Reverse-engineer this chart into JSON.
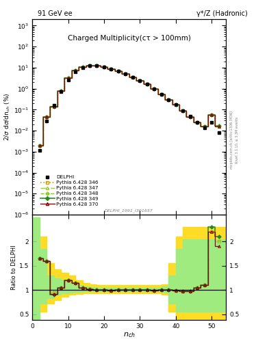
{
  "title_left": "91 GeV ee",
  "title_right": "γ*/Z (Hadronic)",
  "plot_title": "Charged Multiplicity",
  "plot_title_sub": "(cτ > 100mm)",
  "ylabel_main": "2/σ dσ/dn_{ch} (%)",
  "ylabel_ratio": "Ratio to DELPHI",
  "xlabel": "n_{ch}",
  "watermark": "DELPHI_1991_I301657",
  "rivet_label": "Rivet 3.1.10, ≥ 3.3M events",
  "arxiv_label": "[arXiv:1306.3436]",
  "mcplots_label": "mcplots.cern.ch",
  "nch_pts": [
    2,
    4,
    6,
    8,
    10,
    12,
    14,
    16,
    18,
    20,
    22,
    24,
    26,
    28,
    30,
    32,
    34,
    36,
    38,
    40,
    42,
    44,
    46,
    48,
    50,
    52
  ],
  "delphi_vals": [
    0.00115,
    0.028,
    0.155,
    0.72,
    2.6,
    6.5,
    10.2,
    12.4,
    12.1,
    10.6,
    8.6,
    6.7,
    5.1,
    3.6,
    2.4,
    1.6,
    0.95,
    0.55,
    0.3,
    0.17,
    0.09,
    0.048,
    0.024,
    0.014,
    0.025,
    0.008
  ],
  "ratio_346": [
    1.65,
    1.6,
    0.95,
    1.05,
    1.2,
    1.15,
    1.05,
    1.02,
    1.0,
    1.0,
    0.99,
    1.0,
    1.0,
    1.0,
    1.0,
    1.0,
    0.99,
    1.0,
    1.0,
    0.99,
    0.98,
    0.97,
    1.05,
    1.1,
    2.2,
    2.0
  ],
  "ratio_347": [
    1.65,
    1.6,
    0.92,
    1.05,
    1.2,
    1.15,
    1.05,
    1.02,
    1.0,
    1.0,
    0.99,
    1.0,
    1.0,
    1.0,
    1.0,
    1.0,
    0.99,
    1.0,
    1.0,
    0.99,
    0.98,
    0.97,
    1.05,
    1.1,
    2.2,
    2.0
  ],
  "ratio_348": [
    1.65,
    1.6,
    0.9,
    1.05,
    1.2,
    1.15,
    1.05,
    1.02,
    1.0,
    1.0,
    0.99,
    1.0,
    1.0,
    1.0,
    1.0,
    1.0,
    0.99,
    1.0,
    1.0,
    0.99,
    0.98,
    0.97,
    1.05,
    1.1,
    2.3,
    2.1
  ],
  "ratio_349": [
    1.65,
    1.6,
    0.9,
    1.05,
    1.2,
    1.15,
    1.05,
    1.02,
    1.0,
    1.0,
    0.99,
    1.0,
    1.0,
    1.0,
    1.0,
    1.0,
    0.99,
    1.0,
    1.0,
    0.99,
    0.98,
    0.97,
    1.05,
    1.1,
    2.3,
    2.1
  ],
  "ratio_370": [
    1.65,
    1.6,
    0.92,
    1.05,
    1.2,
    1.15,
    1.05,
    1.02,
    1.0,
    1.0,
    0.99,
    1.0,
    1.0,
    1.0,
    1.0,
    1.0,
    0.99,
    1.0,
    1.0,
    0.99,
    0.98,
    0.97,
    1.05,
    1.1,
    2.2,
    1.9
  ],
  "band_x": [
    0,
    2,
    4,
    6,
    8,
    10,
    12,
    14,
    16,
    18,
    20,
    22,
    24,
    26,
    28,
    30,
    32,
    34,
    36,
    38,
    40,
    42,
    44,
    46,
    48,
    50,
    52,
    54
  ],
  "band_y_lo": [
    0.38,
    0.38,
    0.55,
    0.72,
    0.8,
    0.87,
    0.9,
    0.92,
    0.93,
    0.94,
    0.94,
    0.94,
    0.93,
    0.93,
    0.93,
    0.93,
    0.93,
    0.93,
    0.93,
    0.9,
    0.55,
    0.38,
    0.38,
    0.38,
    0.38,
    0.38,
    0.38,
    0.38
  ],
  "band_y_hi": [
    2.5,
    2.5,
    2.1,
    1.55,
    1.42,
    1.36,
    1.3,
    1.2,
    1.15,
    1.12,
    1.1,
    1.1,
    1.1,
    1.1,
    1.1,
    1.1,
    1.1,
    1.1,
    1.1,
    1.12,
    1.55,
    2.1,
    2.3,
    2.3,
    2.3,
    2.3,
    2.3,
    2.3
  ],
  "band_g_lo": [
    0.38,
    0.38,
    0.72,
    0.84,
    0.9,
    0.93,
    0.95,
    0.96,
    0.97,
    0.97,
    0.97,
    0.97,
    0.97,
    0.97,
    0.97,
    0.97,
    0.97,
    0.97,
    0.97,
    0.95,
    0.72,
    0.55,
    0.55,
    0.55,
    0.55,
    0.55,
    0.55,
    0.55
  ],
  "band_g_hi": [
    2.5,
    2.5,
    1.85,
    1.3,
    1.25,
    1.2,
    1.15,
    1.1,
    1.07,
    1.06,
    1.05,
    1.05,
    1.05,
    1.05,
    1.05,
    1.05,
    1.05,
    1.05,
    1.05,
    1.07,
    1.3,
    1.85,
    2.05,
    2.05,
    2.05,
    2.05,
    2.05,
    2.05
  ],
  "color_346": "#c8a000",
  "color_347": "#9acd32",
  "color_348": "#7ccd00",
  "color_349": "#228B22",
  "color_370": "#8B0000",
  "ylim_main": [
    1e-06,
    2000
  ],
  "ylim_ratio": [
    0.38,
    2.55
  ],
  "xlim": [
    0,
    54
  ]
}
